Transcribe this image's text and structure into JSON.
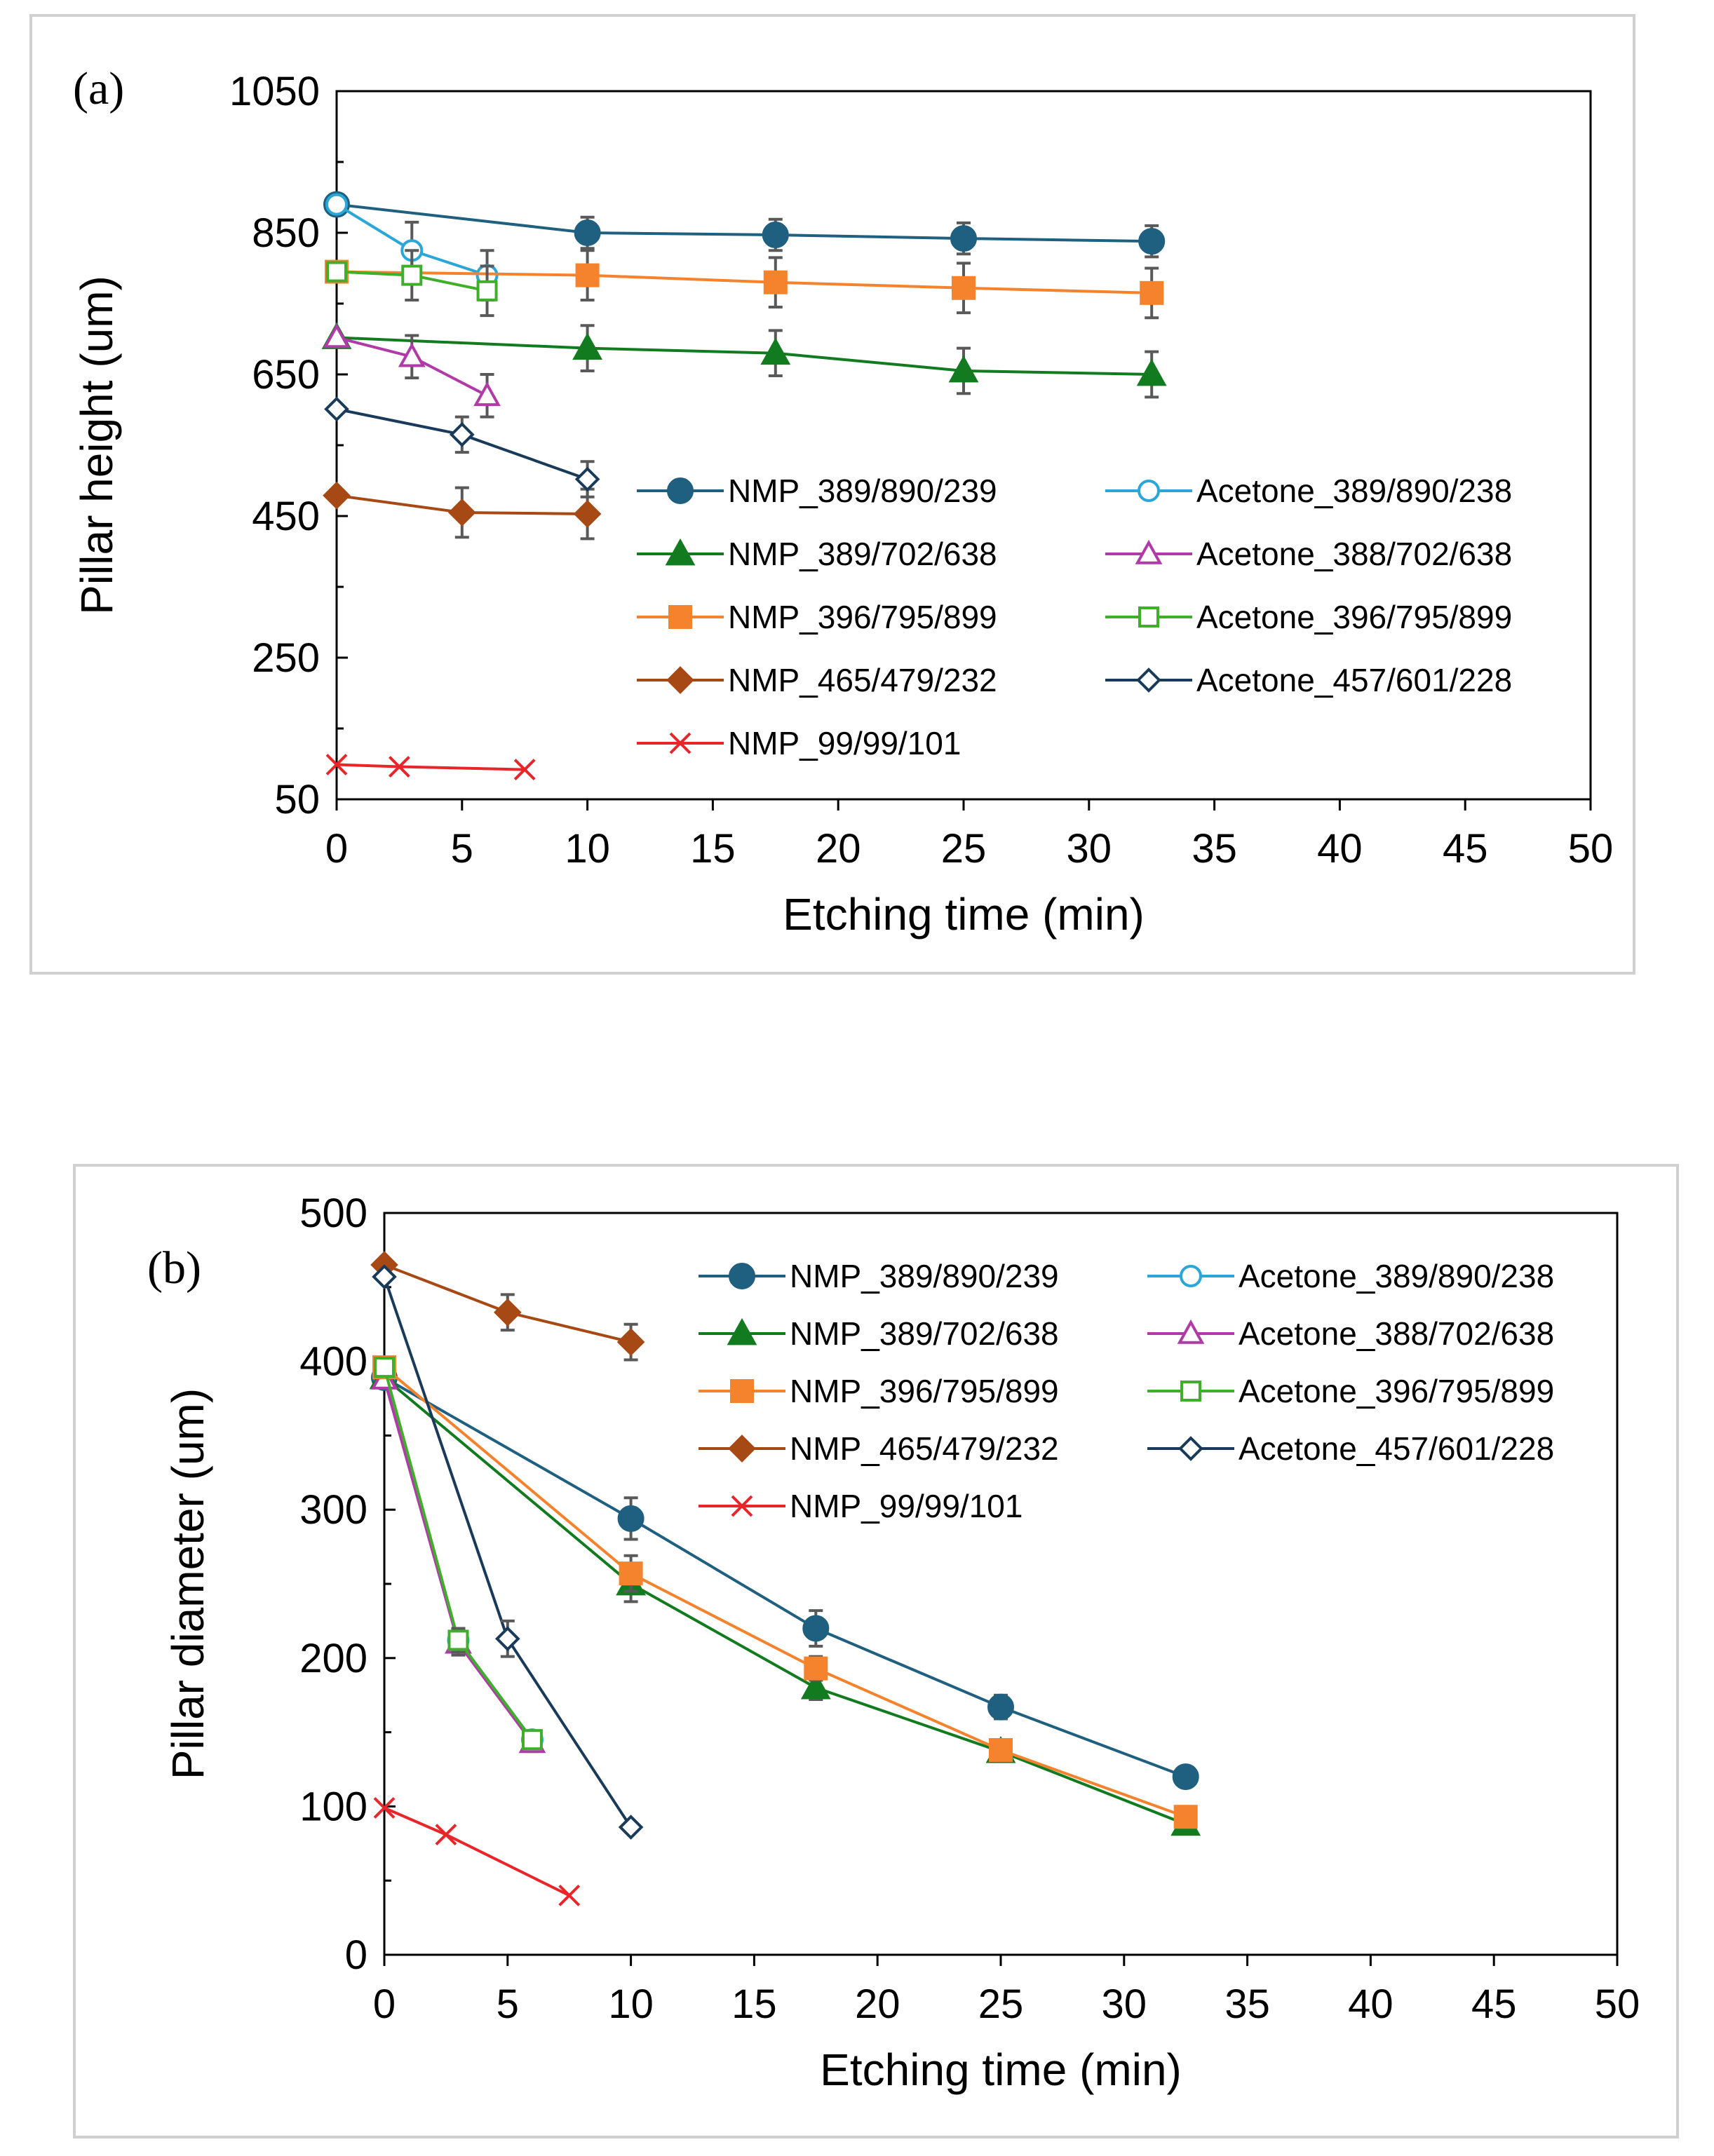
{
  "chart_data": [
    {
      "type": "line",
      "panel_label": "(a)",
      "xlabel": "Etching time (min)",
      "ylabel": "Pillar height (um)",
      "xlim": [
        0,
        50
      ],
      "ylim": [
        50,
        1050
      ],
      "xticks": [
        0,
        5,
        10,
        15,
        20,
        25,
        30,
        35,
        40,
        45,
        50
      ],
      "yticks": [
        50,
        250,
        450,
        650,
        850,
        1050
      ],
      "xtick_labels": [
        "0",
        "5",
        "10",
        "15",
        "20",
        "25",
        "30",
        "35",
        "40",
        "45",
        "50"
      ],
      "ytick_labels": [
        "50",
        "250",
        "450",
        "650",
        "850",
        "1050"
      ],
      "grid": false,
      "legend_position": "center-right",
      "series": [
        {
          "name": "NMP_389/890/239",
          "color": "#1f5f7f",
          "marker": "circle",
          "filled": true,
          "x": [
            0,
            10,
            17.5,
            25,
            32.5
          ],
          "y": [
            890,
            850,
            847,
            842,
            838
          ],
          "err": [
            0,
            22,
            22,
            22,
            22
          ]
        },
        {
          "name": "Acetone_389/890/238",
          "color": "#2aa7d8",
          "marker": "circle",
          "filled": false,
          "x": [
            0,
            3,
            6
          ],
          "y": [
            890,
            825,
            790
          ],
          "err": [
            0,
            40,
            35
          ]
        },
        {
          "name": "NMP_389/702/638",
          "color": "#127a1f",
          "marker": "triangle",
          "filled": true,
          "x": [
            0,
            10,
            17.5,
            25,
            32.5
          ],
          "y": [
            702,
            687,
            680,
            655,
            650
          ],
          "err": [
            0,
            32,
            32,
            32,
            32
          ]
        },
        {
          "name": "Acetone_388/702/638",
          "color": "#b03aa8",
          "marker": "triangle",
          "filled": false,
          "x": [
            0,
            3,
            6
          ],
          "y": [
            702,
            675,
            620
          ],
          "err": [
            0,
            30,
            30
          ]
        },
        {
          "name": "NMP_396/795/899",
          "color": "#f5822d",
          "marker": "square",
          "filled": true,
          "x": [
            0,
            10,
            17.5,
            25,
            32.5
          ],
          "y": [
            795,
            790,
            780,
            772,
            765
          ],
          "err": [
            0,
            35,
            35,
            35,
            35
          ]
        },
        {
          "name": "Acetone_396/795/899",
          "color": "#3fae2a",
          "marker": "square",
          "filled": false,
          "x": [
            0,
            3,
            6
          ],
          "y": [
            795,
            790,
            768
          ],
          "err": [
            0,
            35,
            35
          ]
        },
        {
          "name": "NMP_465/479/232",
          "color": "#a64915",
          "marker": "diamond",
          "filled": true,
          "x": [
            0,
            5,
            10
          ],
          "y": [
            479,
            455,
            453
          ],
          "err": [
            0,
            35,
            35
          ]
        },
        {
          "name": "Acetone_457/601/228",
          "color": "#1a3a5a",
          "marker": "diamond",
          "filled": false,
          "x": [
            0,
            5,
            10
          ],
          "y": [
            601,
            565,
            502
          ],
          "err": [
            0,
            25,
            25
          ]
        },
        {
          "name": "NMP_99/99/101",
          "color": "#e8262a",
          "marker": "x",
          "filled": false,
          "x": [
            0,
            2.5,
            7.5
          ],
          "y": [
            99,
            96,
            92
          ],
          "err": [
            0,
            0,
            0
          ]
        }
      ]
    },
    {
      "type": "line",
      "panel_label": "(b)",
      "xlabel": "Etching time (min)",
      "ylabel": "Pillar diameter (um)",
      "xlim": [
        0,
        50
      ],
      "ylim": [
        0,
        500
      ],
      "xticks": [
        0,
        5,
        10,
        15,
        20,
        25,
        30,
        35,
        40,
        45,
        50
      ],
      "yticks": [
        0,
        100,
        200,
        300,
        400,
        500
      ],
      "xtick_labels": [
        "0",
        "5",
        "10",
        "15",
        "20",
        "25",
        "30",
        "35",
        "40",
        "45",
        "50"
      ],
      "ytick_labels": [
        "0",
        "100",
        "200",
        "300",
        "400",
        "500"
      ],
      "grid": false,
      "legend_position": "top-right",
      "series": [
        {
          "name": "NMP_389/890/239",
          "color": "#1f5f7f",
          "marker": "circle",
          "filled": true,
          "x": [
            0,
            10,
            17.5,
            25,
            32.5
          ],
          "y": [
            389,
            294,
            220,
            167,
            120
          ],
          "err": [
            0,
            14,
            12,
            8,
            0
          ]
        },
        {
          "name": "Acetone_389/890/238",
          "color": "#2aa7d8",
          "marker": "circle",
          "filled": false,
          "x": [
            0,
            3,
            6
          ],
          "y": [
            389,
            212,
            145
          ],
          "err": [
            0,
            8,
            6
          ]
        },
        {
          "name": "NMP_389/702/638",
          "color": "#127a1f",
          "marker": "triangle",
          "filled": true,
          "x": [
            0,
            10,
            17.5,
            25,
            32.5
          ],
          "y": [
            389,
            250,
            180,
            137,
            88
          ],
          "err": [
            0,
            12,
            8,
            5,
            0
          ]
        },
        {
          "name": "Acetone_388/702/638",
          "color": "#b03aa8",
          "marker": "triangle",
          "filled": false,
          "x": [
            0,
            3,
            6
          ],
          "y": [
            388,
            210,
            143
          ],
          "err": [
            0,
            8,
            6
          ]
        },
        {
          "name": "NMP_396/795/899",
          "color": "#f5822d",
          "marker": "square",
          "filled": true,
          "x": [
            0,
            10,
            17.5,
            25,
            32.5
          ],
          "y": [
            396,
            257,
            193,
            138,
            93
          ],
          "err": [
            0,
            12,
            8,
            5,
            0
          ]
        },
        {
          "name": "Acetone_396/795/899",
          "color": "#3fae2a",
          "marker": "square",
          "filled": false,
          "x": [
            0,
            3,
            6
          ],
          "y": [
            396,
            212,
            145
          ],
          "err": [
            0,
            8,
            6
          ]
        },
        {
          "name": "NMP_465/479/232",
          "color": "#a64915",
          "marker": "diamond",
          "filled": true,
          "x": [
            0,
            5,
            10
          ],
          "y": [
            465,
            433,
            413
          ],
          "err": [
            0,
            12,
            12
          ]
        },
        {
          "name": "Acetone_457/601/228",
          "color": "#1a3a5a",
          "marker": "diamond",
          "filled": false,
          "x": [
            0,
            5,
            10
          ],
          "y": [
            457,
            213,
            86
          ],
          "err": [
            0,
            12,
            0
          ]
        },
        {
          "name": "NMP_99/99/101",
          "color": "#e8262a",
          "marker": "x",
          "filled": false,
          "x": [
            0,
            2.5,
            7.5
          ],
          "y": [
            99,
            81,
            40
          ],
          "err": [
            0,
            0,
            0
          ]
        }
      ]
    }
  ]
}
